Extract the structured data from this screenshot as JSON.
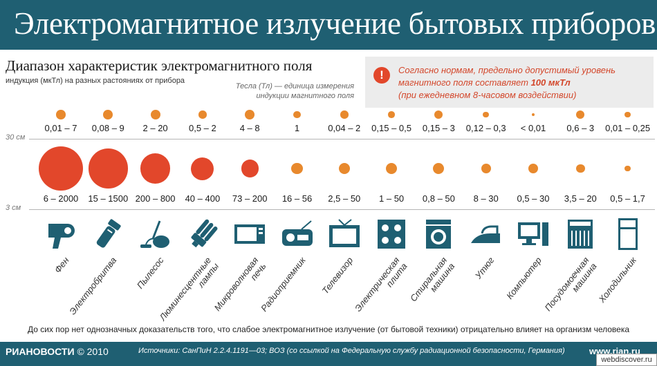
{
  "header": {
    "title": "Электромагнитное излучение бытовых приборов"
  },
  "subtitle": "Диапазон характеристик электромагнитного поля",
  "subnote": "индукция (мкТл) на разных растояниях от прибора",
  "unit_note": "Тесла (Тл) — единица измерения индукции магнитного поля",
  "info": {
    "line1": "Согласно нормам, предельно допустимый уровень",
    "line2a": "магнитного поля составляет",
    "line2b": "100 мкТл",
    "line3": "(при ежедневном 8-часовом воздействии)",
    "warn_icon": "exclamation-icon"
  },
  "distances": {
    "far": "30 см",
    "near": "3 см"
  },
  "colors": {
    "header": "#1f5f72",
    "dot_far": "#e8892d",
    "dot_near": "#e2472b",
    "dot_near_small": "#e8892d",
    "icon": "#1f5f72",
    "warn": "#d3472b"
  },
  "appliances": [
    {
      "name": [
        "Фен"
      ],
      "far": "0,01 – 7",
      "near": "6 – 2000",
      "far_level": 7,
      "near_level": 2000,
      "icon": "hair-dryer-icon"
    },
    {
      "name": [
        "Электробритва"
      ],
      "far": "0,08 – 9",
      "near": "15 – 1500",
      "far_level": 9,
      "near_level": 1500,
      "icon": "electric-shaver-icon"
    },
    {
      "name": [
        "Пылесос"
      ],
      "far": "2 – 20",
      "near": "200 – 800",
      "far_level": 20,
      "near_level": 800,
      "icon": "vacuum-cleaner-icon"
    },
    {
      "name": [
        "Люминесцентные",
        "лампы"
      ],
      "far": "0,5 – 2",
      "near": "40 – 400",
      "far_level": 2,
      "near_level": 400,
      "icon": "fluorescent-lamp-icon"
    },
    {
      "name": [
        "Микроволновая",
        "печь"
      ],
      "far": "4 – 8",
      "near": "73 – 200",
      "far_level": 8,
      "near_level": 200,
      "icon": "microwave-icon"
    },
    {
      "name": [
        "Радиоприемник"
      ],
      "far": "1",
      "near": "16 – 56",
      "far_level": 1,
      "near_level": 56,
      "icon": "radio-icon"
    },
    {
      "name": [
        "Телевизор"
      ],
      "far": "0,04 – 2",
      "near": "2,5 – 50",
      "far_level": 2,
      "near_level": 50,
      "icon": "tv-icon"
    },
    {
      "name": [
        "Электрическая",
        "плита"
      ],
      "far": "0,15 – 0,5",
      "near": "1 – 50",
      "far_level": 0.5,
      "near_level": 50,
      "icon": "electric-stove-icon"
    },
    {
      "name": [
        "Стиральная",
        "машина"
      ],
      "far": "0,15 – 3",
      "near": "0,8 – 50",
      "far_level": 3,
      "near_level": 50,
      "icon": "washing-machine-icon"
    },
    {
      "name": [
        "Утюг"
      ],
      "far": "0,12 – 0,3",
      "near": "8 – 30",
      "far_level": 0.3,
      "near_level": 30,
      "icon": "iron-icon"
    },
    {
      "name": [
        "Компьютер"
      ],
      "far": "< 0,01",
      "near": "0,5 – 30",
      "far_level": 0.01,
      "near_level": 30,
      "icon": "computer-icon"
    },
    {
      "name": [
        "Посудомоечная",
        "машина"
      ],
      "far": "0,6 – 3",
      "near": "3,5 – 20",
      "far_level": 3,
      "near_level": 20,
      "icon": "dishwasher-icon"
    },
    {
      "name": [
        "Холодильник"
      ],
      "far": "0,01 – 0,25",
      "near": "0,5 – 1,7",
      "far_level": 0.25,
      "near_level": 1.7,
      "icon": "refrigerator-icon"
    }
  ],
  "bottom_note": "До сих пор нет однозначных доказательств того, что слабое электромагнитное излучение (от бытовой техники) отрицательно влияет на организм человека",
  "footer": {
    "brand": "РИАНОВОСТИ",
    "year": "© 2010",
    "sources": "Источники: СанПиН 2.2.4.1191—03; ВОЗ (со ссылкой на Федеральную службу радиационной безопасности, Германия)",
    "site": "www.rian.ru"
  },
  "watermark": "webdiscover.ru"
}
